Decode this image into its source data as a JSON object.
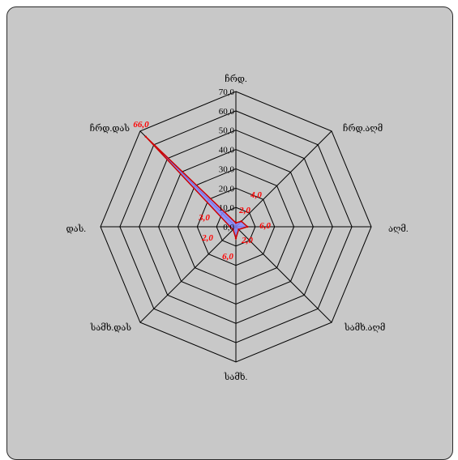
{
  "chart_data": {
    "type": "radar",
    "directions": [
      "ჩრდ.",
      "ჩრდ.აღმ",
      "აღმ.",
      "სამხ.აღმ",
      "სამხ.",
      "სამხ.დას",
      "დას.",
      "ჩრდ.დას"
    ],
    "tick_labels": [
      "0,0",
      "10,0",
      "20,0",
      "30,0",
      "40,0",
      "50,0",
      "60,0",
      "70,0"
    ],
    "rlim": [
      0,
      70
    ],
    "grid": true,
    "series": [
      {
        "values": [
          2.0,
          4.0,
          6.0,
          2.0,
          6.0,
          2.0,
          3.0,
          66.0
        ],
        "color": "#8a8aff",
        "stroke": "#cc0000"
      }
    ],
    "data_labels": [
      "2,0",
      "4,0",
      "6,0",
      "2,0",
      "6,0",
      "2,0",
      "3,0",
      "66,0"
    ],
    "data_label_color": "#ff0000"
  }
}
